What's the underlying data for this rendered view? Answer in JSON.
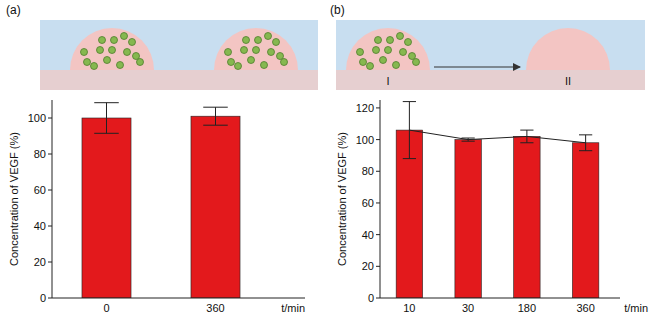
{
  "chart_data": [
    {
      "type": "bar",
      "title": "(a)",
      "categories": [
        "0",
        "360"
      ],
      "values": [
        100,
        101
      ],
      "errors": [
        8.5,
        5
      ],
      "color": "#e3191c",
      "ylabel": "Concentration of VEGF (%)",
      "xlabel": "t/min",
      "ylim": [
        0,
        110
      ],
      "yticks": [
        0,
        20,
        40,
        60,
        80,
        100
      ],
      "grid": false
    },
    {
      "type": "bar",
      "title": "(b)",
      "annotations": [
        "I",
        "II"
      ],
      "categories": [
        "10",
        "30",
        "180",
        "360"
      ],
      "values": [
        106,
        100,
        102,
        98
      ],
      "errors": [
        18,
        1,
        4,
        5
      ],
      "line_style": "solid",
      "color": "#e3191c",
      "ylabel": "Concentration of VEGF (%)",
      "xlabel": "t/min",
      "ylim": [
        0,
        125
      ],
      "yticks": [
        0,
        20,
        40,
        60,
        80,
        100,
        120
      ],
      "grid": false
    }
  ]
}
